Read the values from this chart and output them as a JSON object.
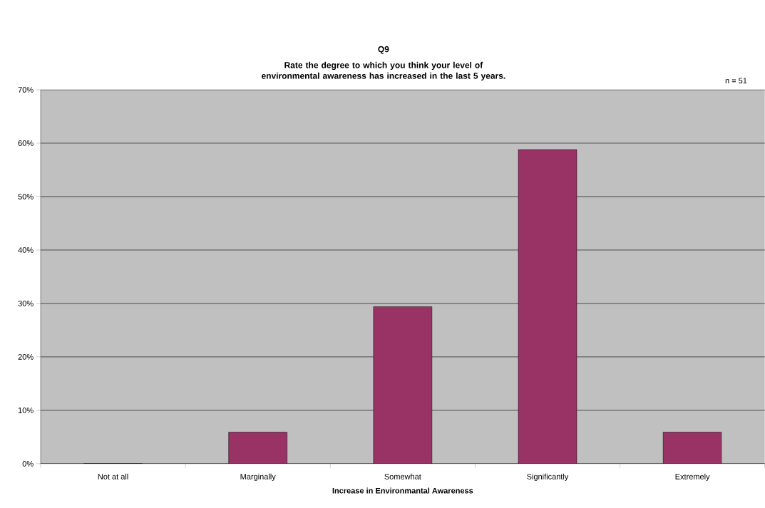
{
  "chart_data": {
    "type": "bar",
    "title": "Q9",
    "subtitle": "Rate the degree to which you think your level of environmental awareness has increased in the last 5 years.",
    "xlabel": "Increase in Environmantal Awareness",
    "categories": [
      "Not at all",
      "Marginally",
      "Somewhat",
      "Significantly",
      "Extremely"
    ],
    "values": [
      0,
      5.9,
      29.4,
      58.8,
      5.9
    ],
    "color": "#993366",
    "ylim": [
      0,
      70
    ],
    "yticks": [
      {
        "value": 0,
        "label": "0%"
      },
      {
        "value": 10,
        "label": "10%"
      },
      {
        "value": 20,
        "label": "20%"
      },
      {
        "value": 30,
        "label": "30%"
      },
      {
        "value": 40,
        "label": "40%"
      },
      {
        "value": 50,
        "label": "50%"
      },
      {
        "value": 60,
        "label": "60%"
      },
      {
        "value": 70,
        "label": "70%"
      }
    ],
    "grid": "y",
    "annotations": [
      "n = 51"
    ]
  }
}
